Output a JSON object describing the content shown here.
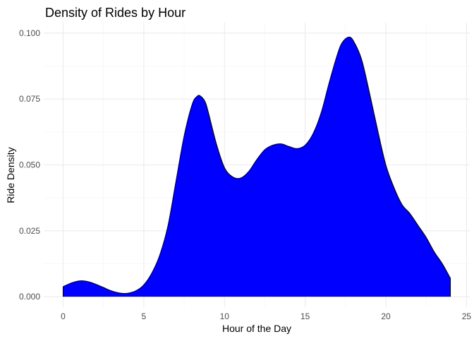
{
  "chart_data": {
    "type": "area",
    "title": "Density of Rides by Hour",
    "xlabel": "Hour of the Day",
    "ylabel": "Ride Density",
    "xlim": [
      -1.2,
      25.2
    ],
    "ylim": [
      -0.004,
      0.104
    ],
    "x_ticks": [
      0,
      5,
      10,
      15,
      20,
      25
    ],
    "x_tick_labels": [
      "0",
      "5",
      "10",
      "15",
      "20",
      "25"
    ],
    "y_ticks": [
      0.0,
      0.025,
      0.05,
      0.075,
      0.1
    ],
    "y_tick_labels": [
      "0.000",
      "0.025",
      "0.050",
      "0.075",
      "0.100"
    ],
    "grid": true,
    "fill_color": "#0000ff",
    "line_color": "#000000",
    "x": [
      0,
      0.5,
      1,
      1.5,
      2,
      2.5,
      3,
      3.5,
      4,
      4.5,
      5,
      5.5,
      6,
      6.5,
      7,
      7.5,
      8,
      8.3,
      8.5,
      8.8,
      9,
      9.5,
      10,
      10.5,
      11,
      11.5,
      12,
      12.5,
      13,
      13.5,
      14,
      14.5,
      15,
      15.5,
      16,
      16.5,
      17,
      17.3,
      17.7,
      18,
      18.5,
      19,
      19.5,
      20,
      20.5,
      21,
      21.5,
      22,
      22.5,
      23,
      23.5,
      24
    ],
    "y": [
      0.0038,
      0.0052,
      0.006,
      0.0058,
      0.0048,
      0.0035,
      0.0022,
      0.0014,
      0.0013,
      0.0022,
      0.0045,
      0.009,
      0.016,
      0.027,
      0.044,
      0.061,
      0.073,
      0.076,
      0.0762,
      0.074,
      0.07,
      0.058,
      0.049,
      0.0455,
      0.045,
      0.0475,
      0.052,
      0.0558,
      0.0575,
      0.058,
      0.057,
      0.0562,
      0.0575,
      0.062,
      0.07,
      0.0815,
      0.092,
      0.0965,
      0.0985,
      0.097,
      0.09,
      0.077,
      0.063,
      0.05,
      0.0415,
      0.035,
      0.0315,
      0.027,
      0.0225,
      0.017,
      0.0125,
      0.007
    ]
  }
}
